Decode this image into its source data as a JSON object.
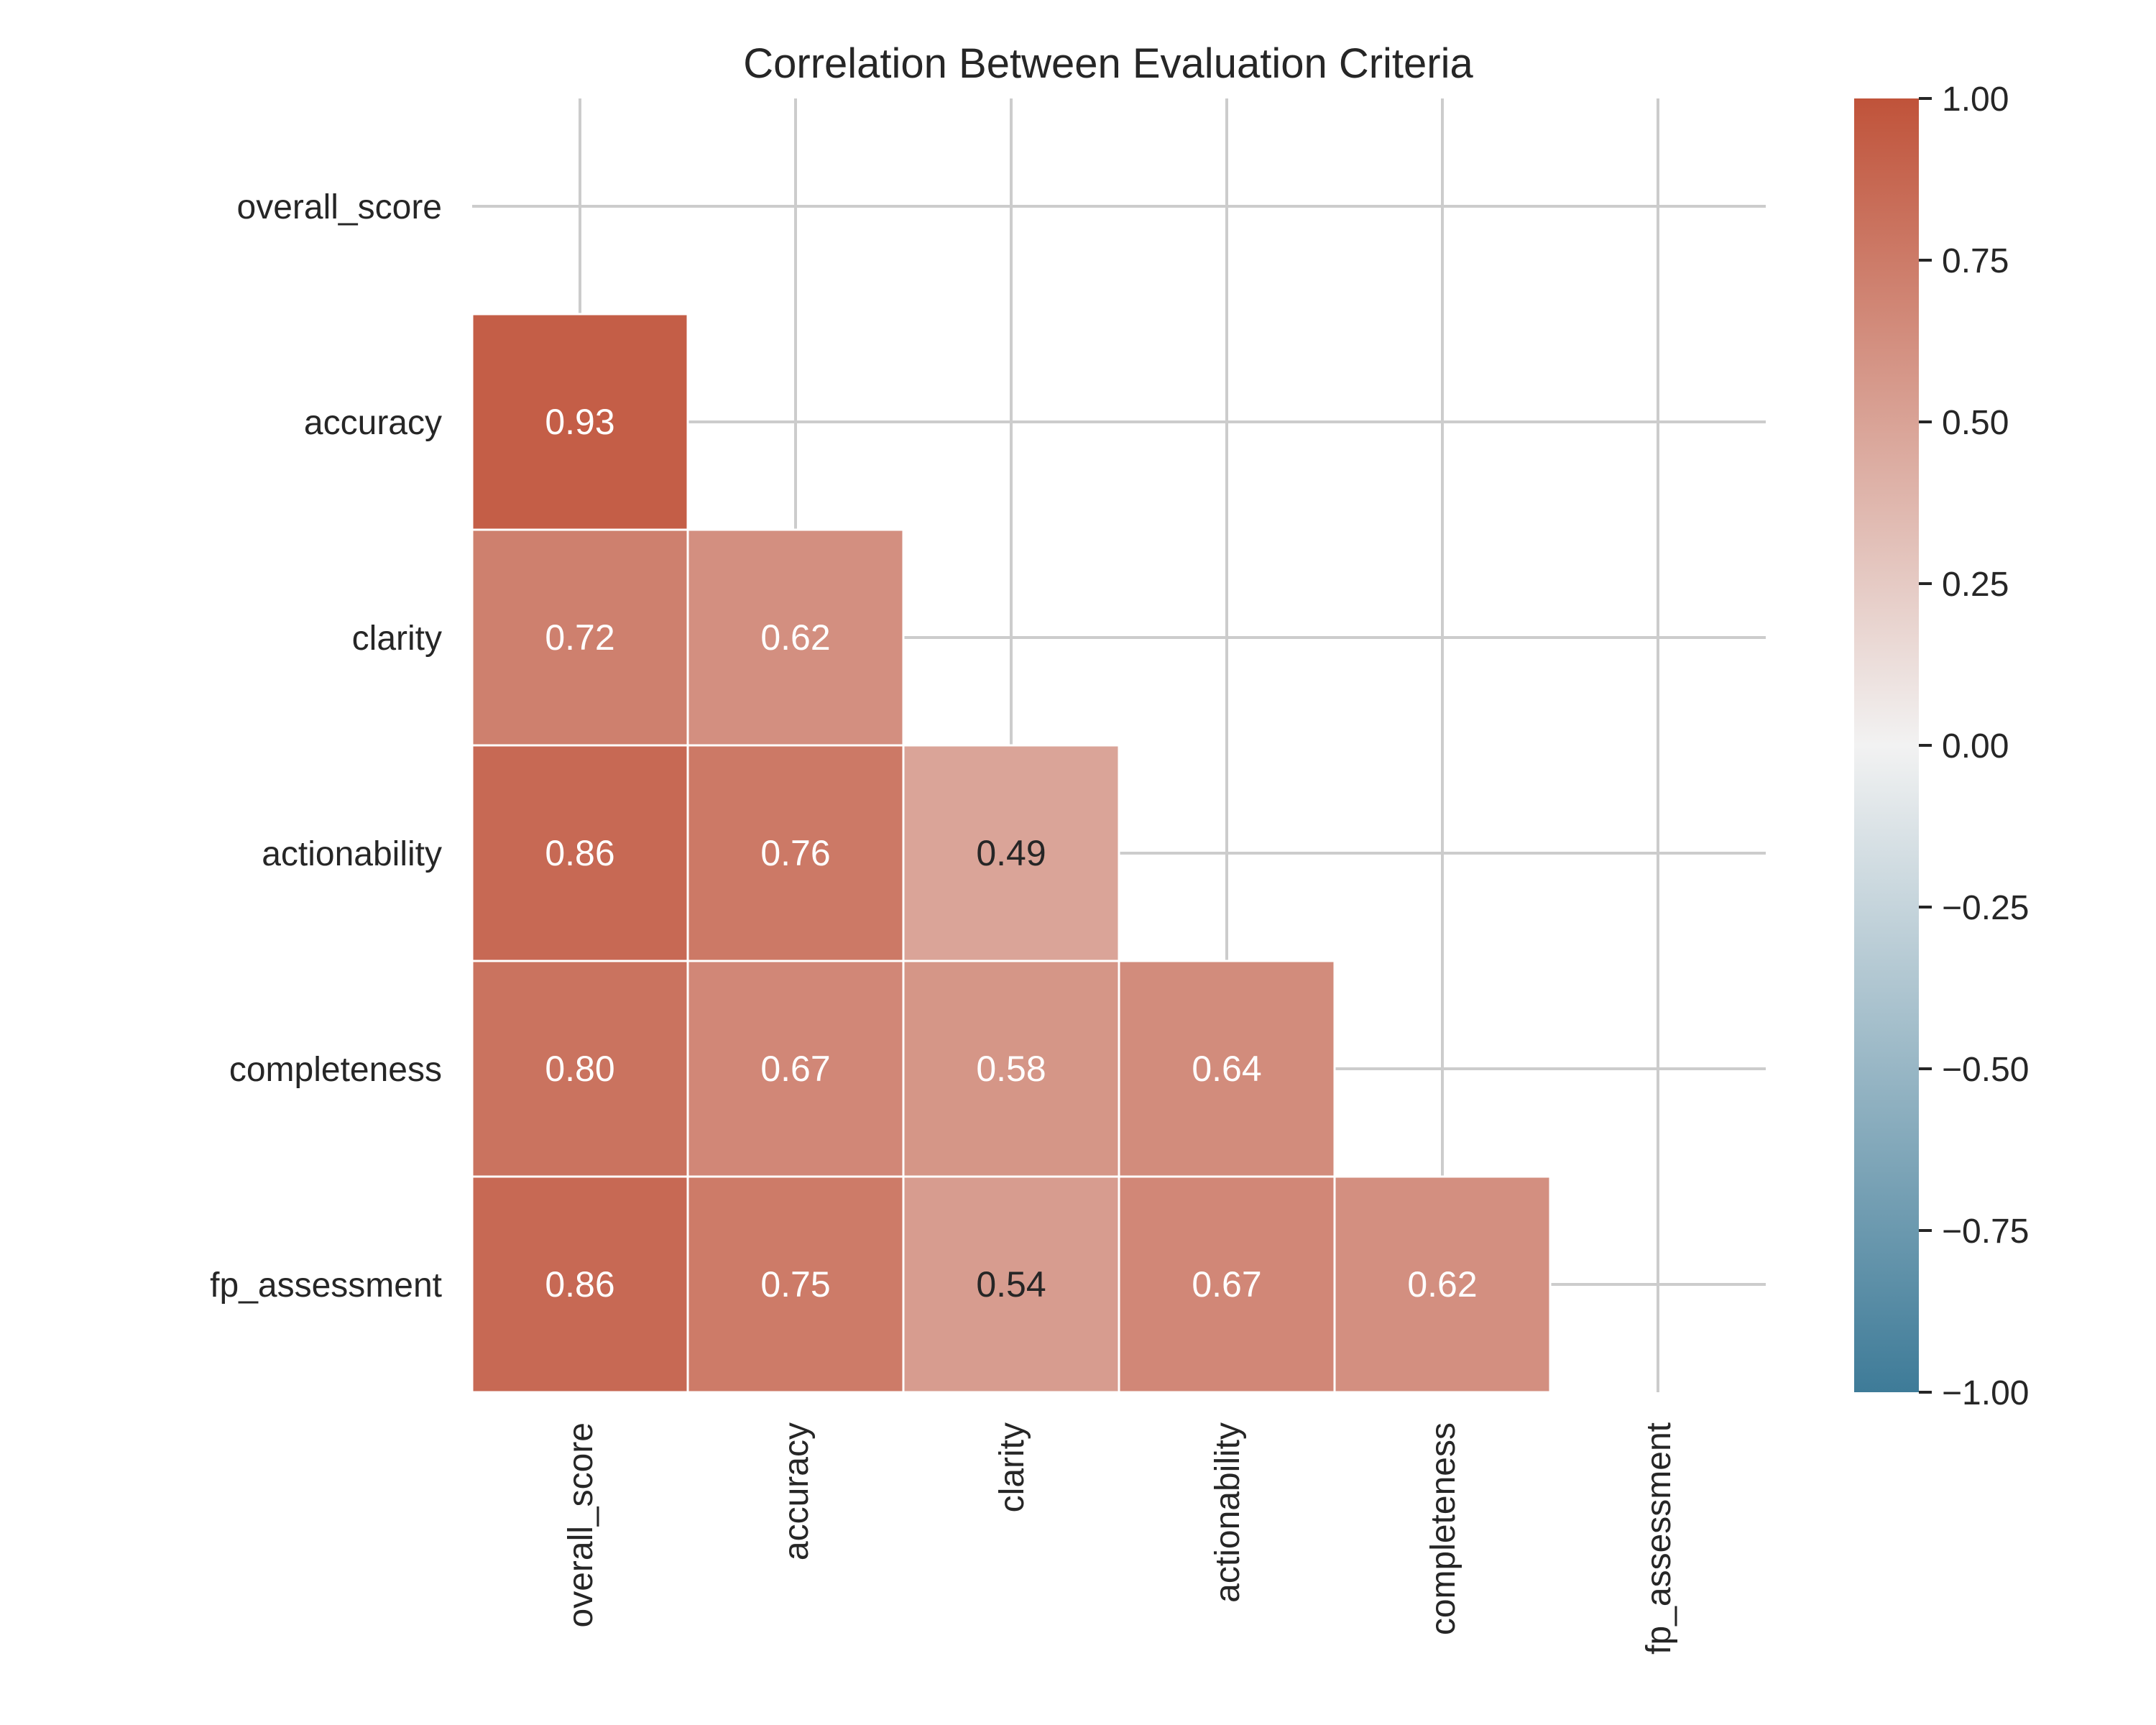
{
  "chart_data": {
    "type": "heatmap",
    "title": "Correlation Between Evaluation Criteria",
    "xlabel": "",
    "ylabel": "",
    "rows": [
      "overall_score",
      "accuracy",
      "clarity",
      "actionability",
      "completeness",
      "fp_assessment"
    ],
    "columns": [
      "overall_score",
      "accuracy",
      "clarity",
      "actionability",
      "completeness",
      "fp_assessment"
    ],
    "mask": "upper-triangle-including-diagonal",
    "values": [
      [
        null,
        null,
        null,
        null,
        null,
        null
      ],
      [
        0.93,
        null,
        null,
        null,
        null,
        null
      ],
      [
        0.72,
        0.62,
        null,
        null,
        null,
        null
      ],
      [
        0.86,
        0.76,
        0.49,
        null,
        null,
        null
      ],
      [
        0.8,
        0.67,
        0.58,
        0.64,
        null,
        null
      ],
      [
        0.86,
        0.75,
        0.54,
        0.67,
        0.62,
        null
      ]
    ],
    "annotation_format": "0.00",
    "colorbar": {
      "range": [
        -1.0,
        1.0
      ],
      "ticks": [
        "1.00",
        "0.75",
        "0.50",
        "0.25",
        "0.00",
        "−0.25",
        "−0.50",
        "−0.75",
        "−1.00"
      ],
      "tick_values": [
        1.0,
        0.75,
        0.5,
        0.25,
        0.0,
        -0.25,
        -0.5,
        -0.75,
        -1.0
      ],
      "colors": {
        "low": "#3e7b98",
        "mid": "#f2f2f2",
        "high": "#c0533a"
      }
    },
    "grid": true,
    "x_tick_rotation": "vertical"
  }
}
